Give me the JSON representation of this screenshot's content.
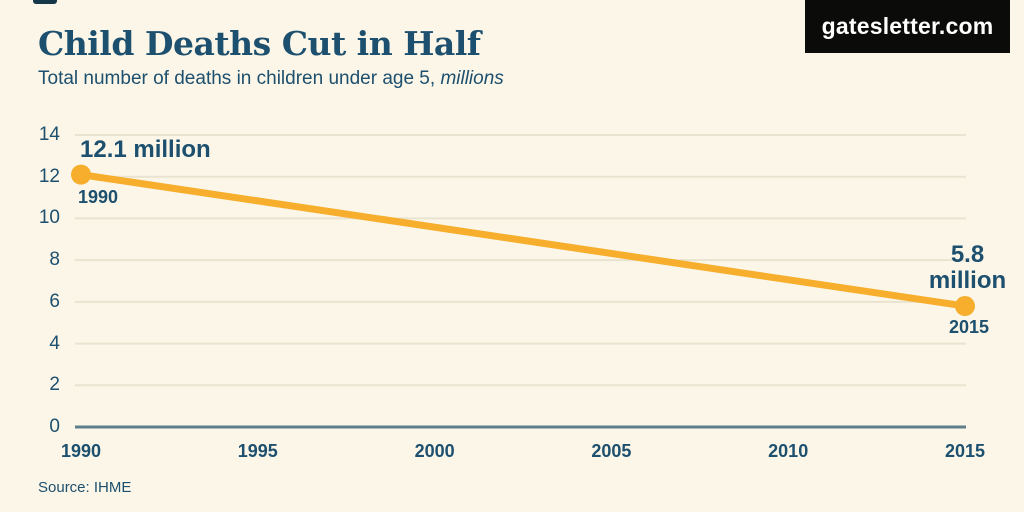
{
  "header": {
    "title": "Child Deaths Cut in Half",
    "subtitle_prefix": "Total number of deaths in children under age 5, ",
    "subtitle_italic": "millions",
    "logo": "gatesletter.com"
  },
  "chart_data": {
    "type": "line",
    "title": "Child Deaths Cut in Half",
    "subtitle": "Total number of deaths in children under age 5, millions",
    "x": [
      1990,
      2015
    ],
    "values": [
      12.1,
      5.8
    ],
    "x_ticks": [
      "1990",
      "1995",
      "2000",
      "2005",
      "2010",
      "2015"
    ],
    "y_ticks": [
      14,
      12,
      10,
      8,
      6,
      4,
      2,
      0
    ],
    "xlim": [
      1990,
      2015
    ],
    "ylim": [
      0,
      14
    ],
    "grid": true,
    "legend": false,
    "line_color": "#F6AE2C",
    "annotations": [
      {
        "x": 1990,
        "y": 12.1,
        "value_label": "12.1 million",
        "year_label": "1990"
      },
      {
        "x": 2015,
        "y": 5.8,
        "value_label": "5.8 million",
        "year_label": "2015"
      }
    ]
  },
  "point_labels": {
    "start_value": "12.1 million",
    "start_year": "1990",
    "end_value_line1": "5.8",
    "end_value_line2": "million",
    "end_year": "2015"
  },
  "footer": {
    "source": "Source: IHME"
  },
  "colors": {
    "background": "#FBF6E7",
    "text_navy": "#1D4F6E",
    "line_amber": "#F6AE2C",
    "gridline": "#E9E3D2",
    "zero_axis": "#5E7D8D",
    "logo_background": "#0B0B09",
    "logo_text": "#FFFFFF"
  }
}
